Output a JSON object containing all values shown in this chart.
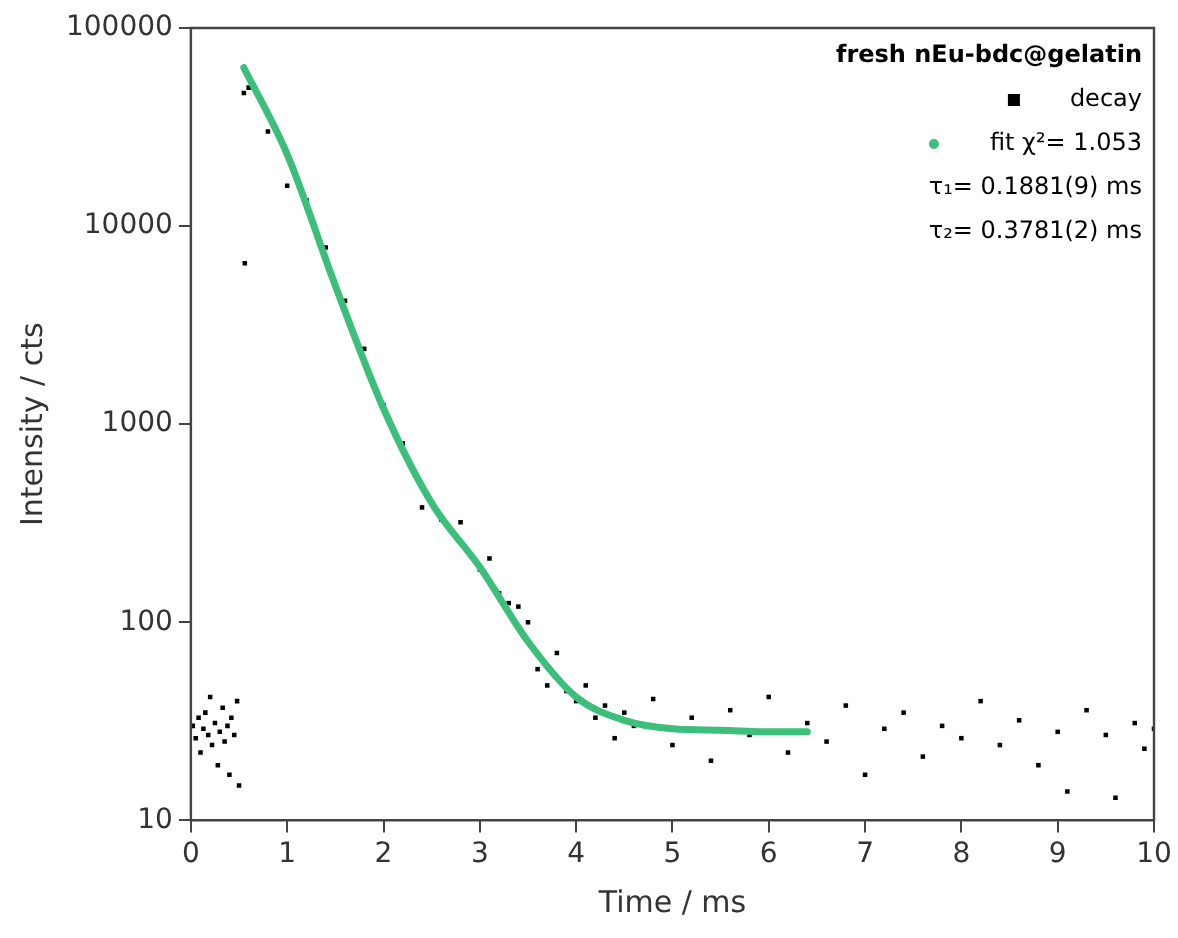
{
  "chart_data": {
    "type": "scatter",
    "xlabel": "Time / ms",
    "ylabel": "Intensity / cts",
    "legend_title": "fresh nEu-bdc@gelatin",
    "legend": "top right",
    "log": "y",
    "grid": false,
    "xlim": [
      0,
      10
    ],
    "xticks": [
      0,
      1,
      2,
      3,
      4,
      5,
      6,
      7,
      8,
      9,
      10
    ],
    "ylim": [
      10,
      100000
    ],
    "yticks": [
      10,
      100,
      1000,
      10000,
      100000
    ],
    "annotations": [
      "τ₁= 0.1881(9) ms",
      "τ₂= 0.3781(2) ms"
    ],
    "series": [
      {
        "name": "decay",
        "type": "scatter",
        "marker": "square",
        "color": "#000000",
        "x": [
          0.02,
          0.05,
          0.08,
          0.1,
          0.13,
          0.15,
          0.18,
          0.2,
          0.22,
          0.25,
          0.28,
          0.3,
          0.33,
          0.35,
          0.38,
          0.4,
          0.42,
          0.45,
          0.48,
          0.5,
          0.55,
          0.56,
          0.6,
          0.8,
          1.0,
          1.2,
          1.4,
          1.6,
          1.8,
          2.0,
          2.2,
          2.4,
          2.6,
          2.8,
          3.0,
          3.1,
          3.2,
          3.3,
          3.4,
          3.5,
          3.6,
          3.7,
          3.8,
          3.9,
          4.0,
          4.1,
          4.2,
          4.3,
          4.4,
          4.5,
          4.6,
          4.8,
          5.0,
          5.2,
          5.4,
          5.6,
          5.8,
          6.0,
          6.2,
          6.4,
          6.6,
          6.8,
          7.0,
          7.2,
          7.4,
          7.6,
          7.8,
          8.0,
          8.2,
          8.4,
          8.6,
          8.8,
          9.0,
          9.1,
          9.3,
          9.5,
          9.6,
          9.8,
          9.9,
          10.0
        ],
        "values": [
          30,
          26,
          33,
          22,
          29,
          35,
          27,
          42,
          24,
          31,
          19,
          28,
          37,
          25,
          30,
          17,
          33,
          27,
          40,
          15,
          47000,
          6500,
          50000,
          30000,
          16000,
          13500,
          7800,
          4200,
          2400,
          1250,
          800,
          380,
          330,
          320,
          185,
          210,
          140,
          125,
          120,
          100,
          58,
          48,
          70,
          45,
          40,
          48,
          33,
          38,
          26,
          35,
          30,
          41,
          24,
          33,
          20,
          36,
          27,
          42,
          22,
          31,
          25,
          38,
          17,
          29,
          35,
          21,
          30,
          26,
          40,
          24,
          32,
          19,
          28,
          14,
          36,
          27,
          13,
          31,
          23,
          29
        ]
      },
      {
        "name": "fit χ²= 1.053",
        "type": "line",
        "marker": "none",
        "color": "#3cbf7a",
        "x": [
          0.55,
          1.0,
          1.5,
          2.0,
          2.5,
          3.0,
          3.5,
          4.0,
          4.5,
          5.0,
          5.5,
          6.0,
          6.4
        ],
        "values": [
          63000,
          23000,
          5000,
          1200,
          400,
          190,
          80,
          42,
          32,
          29,
          28.5,
          28,
          28
        ]
      }
    ]
  }
}
